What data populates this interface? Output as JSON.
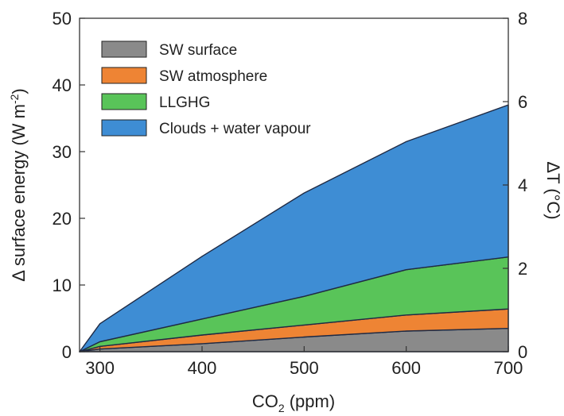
{
  "chart_data": {
    "type": "area",
    "stacked": true,
    "x": [
      280,
      300,
      400,
      500,
      600,
      700
    ],
    "series": [
      {
        "name": "SW surface",
        "color": "#8a8a8a",
        "values": [
          0,
          0.4,
          1.2,
          2.2,
          3.1,
          3.5
        ]
      },
      {
        "name": "SW atmosphere",
        "color": "#ee8434",
        "values": [
          0,
          0.4,
          1.3,
          1.8,
          2.4,
          2.9
        ]
      },
      {
        "name": "LLGHG",
        "color": "#59c459",
        "values": [
          0,
          0.7,
          2.4,
          4.3,
          6.8,
          7.8
        ]
      },
      {
        "name": "Clouds + water vapour",
        "color": "#3e8dd4",
        "values": [
          0,
          2.7,
          9.4,
          15.5,
          19.2,
          22.8
        ]
      }
    ],
    "xlabel_main": "CO",
    "xlabel_sub": "2",
    "xlabel_rest": " (ppm)",
    "ylabel_main": "Δ surface energy (W m",
    "ylabel_sup": "-2",
    "ylabel_close": ")",
    "ylabel_right": "ΔT (°C)",
    "xlim": [
      280,
      700
    ],
    "ylim": [
      0,
      50
    ],
    "ylim_right": [
      0,
      8
    ],
    "x_ticks": [
      "300",
      "400",
      "500",
      "600",
      "700"
    ],
    "y_ticks": [
      "0",
      "10",
      "20",
      "30",
      "40",
      "50"
    ],
    "y_ticks_right": [
      "0",
      "2",
      "4",
      "6",
      "8"
    ],
    "legend_position": "top-left",
    "grid": false
  }
}
